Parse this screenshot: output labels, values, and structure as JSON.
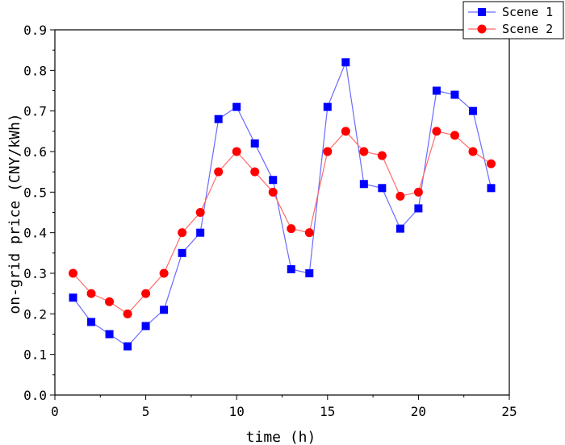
{
  "chart_data": {
    "type": "line",
    "title": "",
    "xlabel": "time (h)",
    "ylabel": "on-grid price (CNY/kWh)",
    "xlim": [
      0,
      25
    ],
    "ylim": [
      0,
      0.9
    ],
    "xticks": [
      0,
      5,
      10,
      15,
      20,
      25
    ],
    "yticks": [
      0.0,
      0.1,
      0.2,
      0.3,
      0.4,
      0.5,
      0.6,
      0.7,
      0.8,
      0.9
    ],
    "grid": false,
    "legend_position": "top-right",
    "x": [
      1,
      2,
      3,
      4,
      5,
      6,
      7,
      8,
      9,
      10,
      11,
      12,
      13,
      14,
      15,
      16,
      17,
      18,
      19,
      20,
      21,
      22,
      23,
      24
    ],
    "series": [
      {
        "name": "Scene 1",
        "color": "#0000ff",
        "line_color": "#6b6bff",
        "marker": "square",
        "values": [
          0.24,
          0.18,
          0.15,
          0.12,
          0.17,
          0.21,
          0.35,
          0.4,
          0.68,
          0.71,
          0.62,
          0.53,
          0.31,
          0.3,
          0.71,
          0.82,
          0.52,
          0.51,
          0.41,
          0.46,
          0.75,
          0.74,
          0.7,
          0.51
        ]
      },
      {
        "name": "Scene 2",
        "color": "#ff0000",
        "line_color": "#ff6b6b",
        "marker": "circle",
        "values": [
          0.3,
          0.25,
          0.23,
          0.2,
          0.25,
          0.3,
          0.4,
          0.45,
          0.55,
          0.6,
          0.55,
          0.5,
          0.41,
          0.4,
          0.6,
          0.65,
          0.6,
          0.59,
          0.49,
          0.5,
          0.65,
          0.64,
          0.6,
          0.57
        ]
      }
    ]
  }
}
